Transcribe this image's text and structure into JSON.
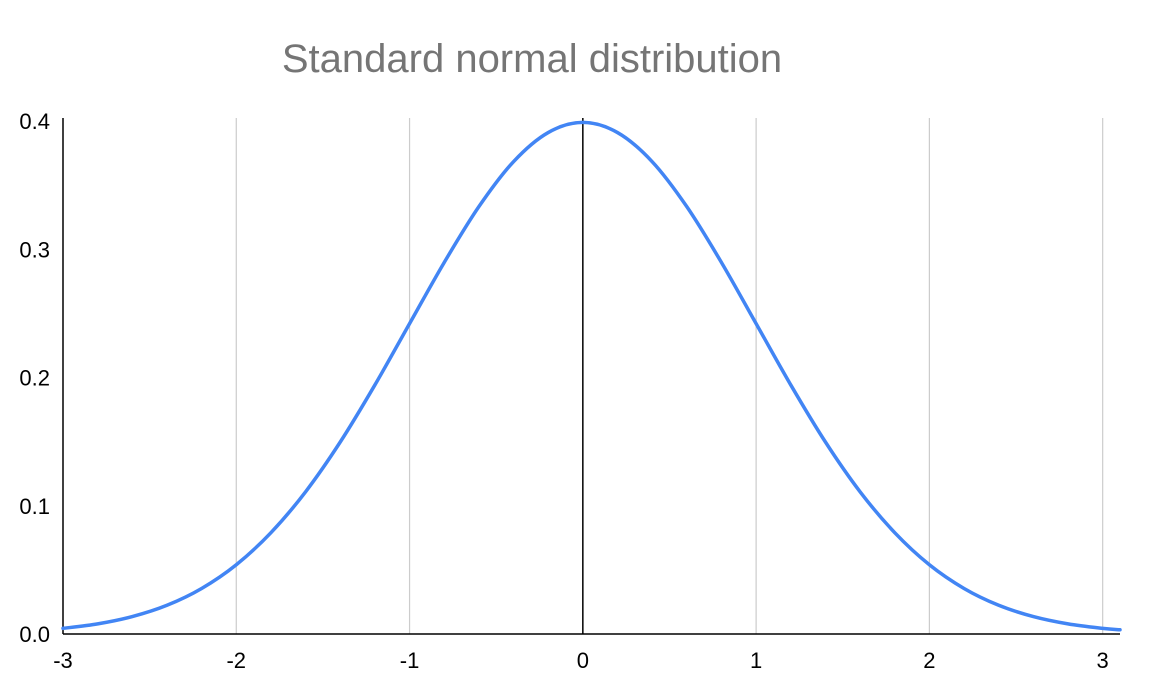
{
  "chart_data": {
    "type": "line",
    "title": "Standard normal distribution",
    "xlabel": "",
    "ylabel": "",
    "xlim": [
      -3,
      3.1
    ],
    "ylim": [
      0,
      0.4
    ],
    "x_ticks": [
      "-3",
      "-2",
      "-1",
      "0",
      "1",
      "2",
      "3"
    ],
    "y_ticks": [
      "0.0",
      "0.1",
      "0.2",
      "0.3",
      "0.4"
    ],
    "grid": "vertical",
    "legend": "none",
    "series": [
      {
        "color": "#4285f4",
        "x": [
          -3.0,
          -2.8,
          -2.6,
          -2.4,
          -2.2,
          -2.0,
          -1.8,
          -1.6,
          -1.4,
          -1.2,
          -1.0,
          -0.8,
          -0.6,
          -0.4,
          -0.2,
          0.0,
          0.2,
          0.4,
          0.6,
          0.8,
          1.0,
          1.2,
          1.4,
          1.6,
          1.8,
          2.0,
          2.2,
          2.4,
          2.6,
          2.8,
          3.0,
          3.1
        ],
        "y": [
          0.0044,
          0.0079,
          0.0136,
          0.0224,
          0.0355,
          0.054,
          0.079,
          0.1109,
          0.1497,
          0.1942,
          0.242,
          0.2897,
          0.3332,
          0.3683,
          0.391,
          0.3989,
          0.391,
          0.3683,
          0.3332,
          0.2897,
          0.242,
          0.1942,
          0.1497,
          0.1109,
          0.079,
          0.054,
          0.0355,
          0.0224,
          0.0136,
          0.0079,
          0.0044,
          0.0033
        ]
      }
    ]
  }
}
